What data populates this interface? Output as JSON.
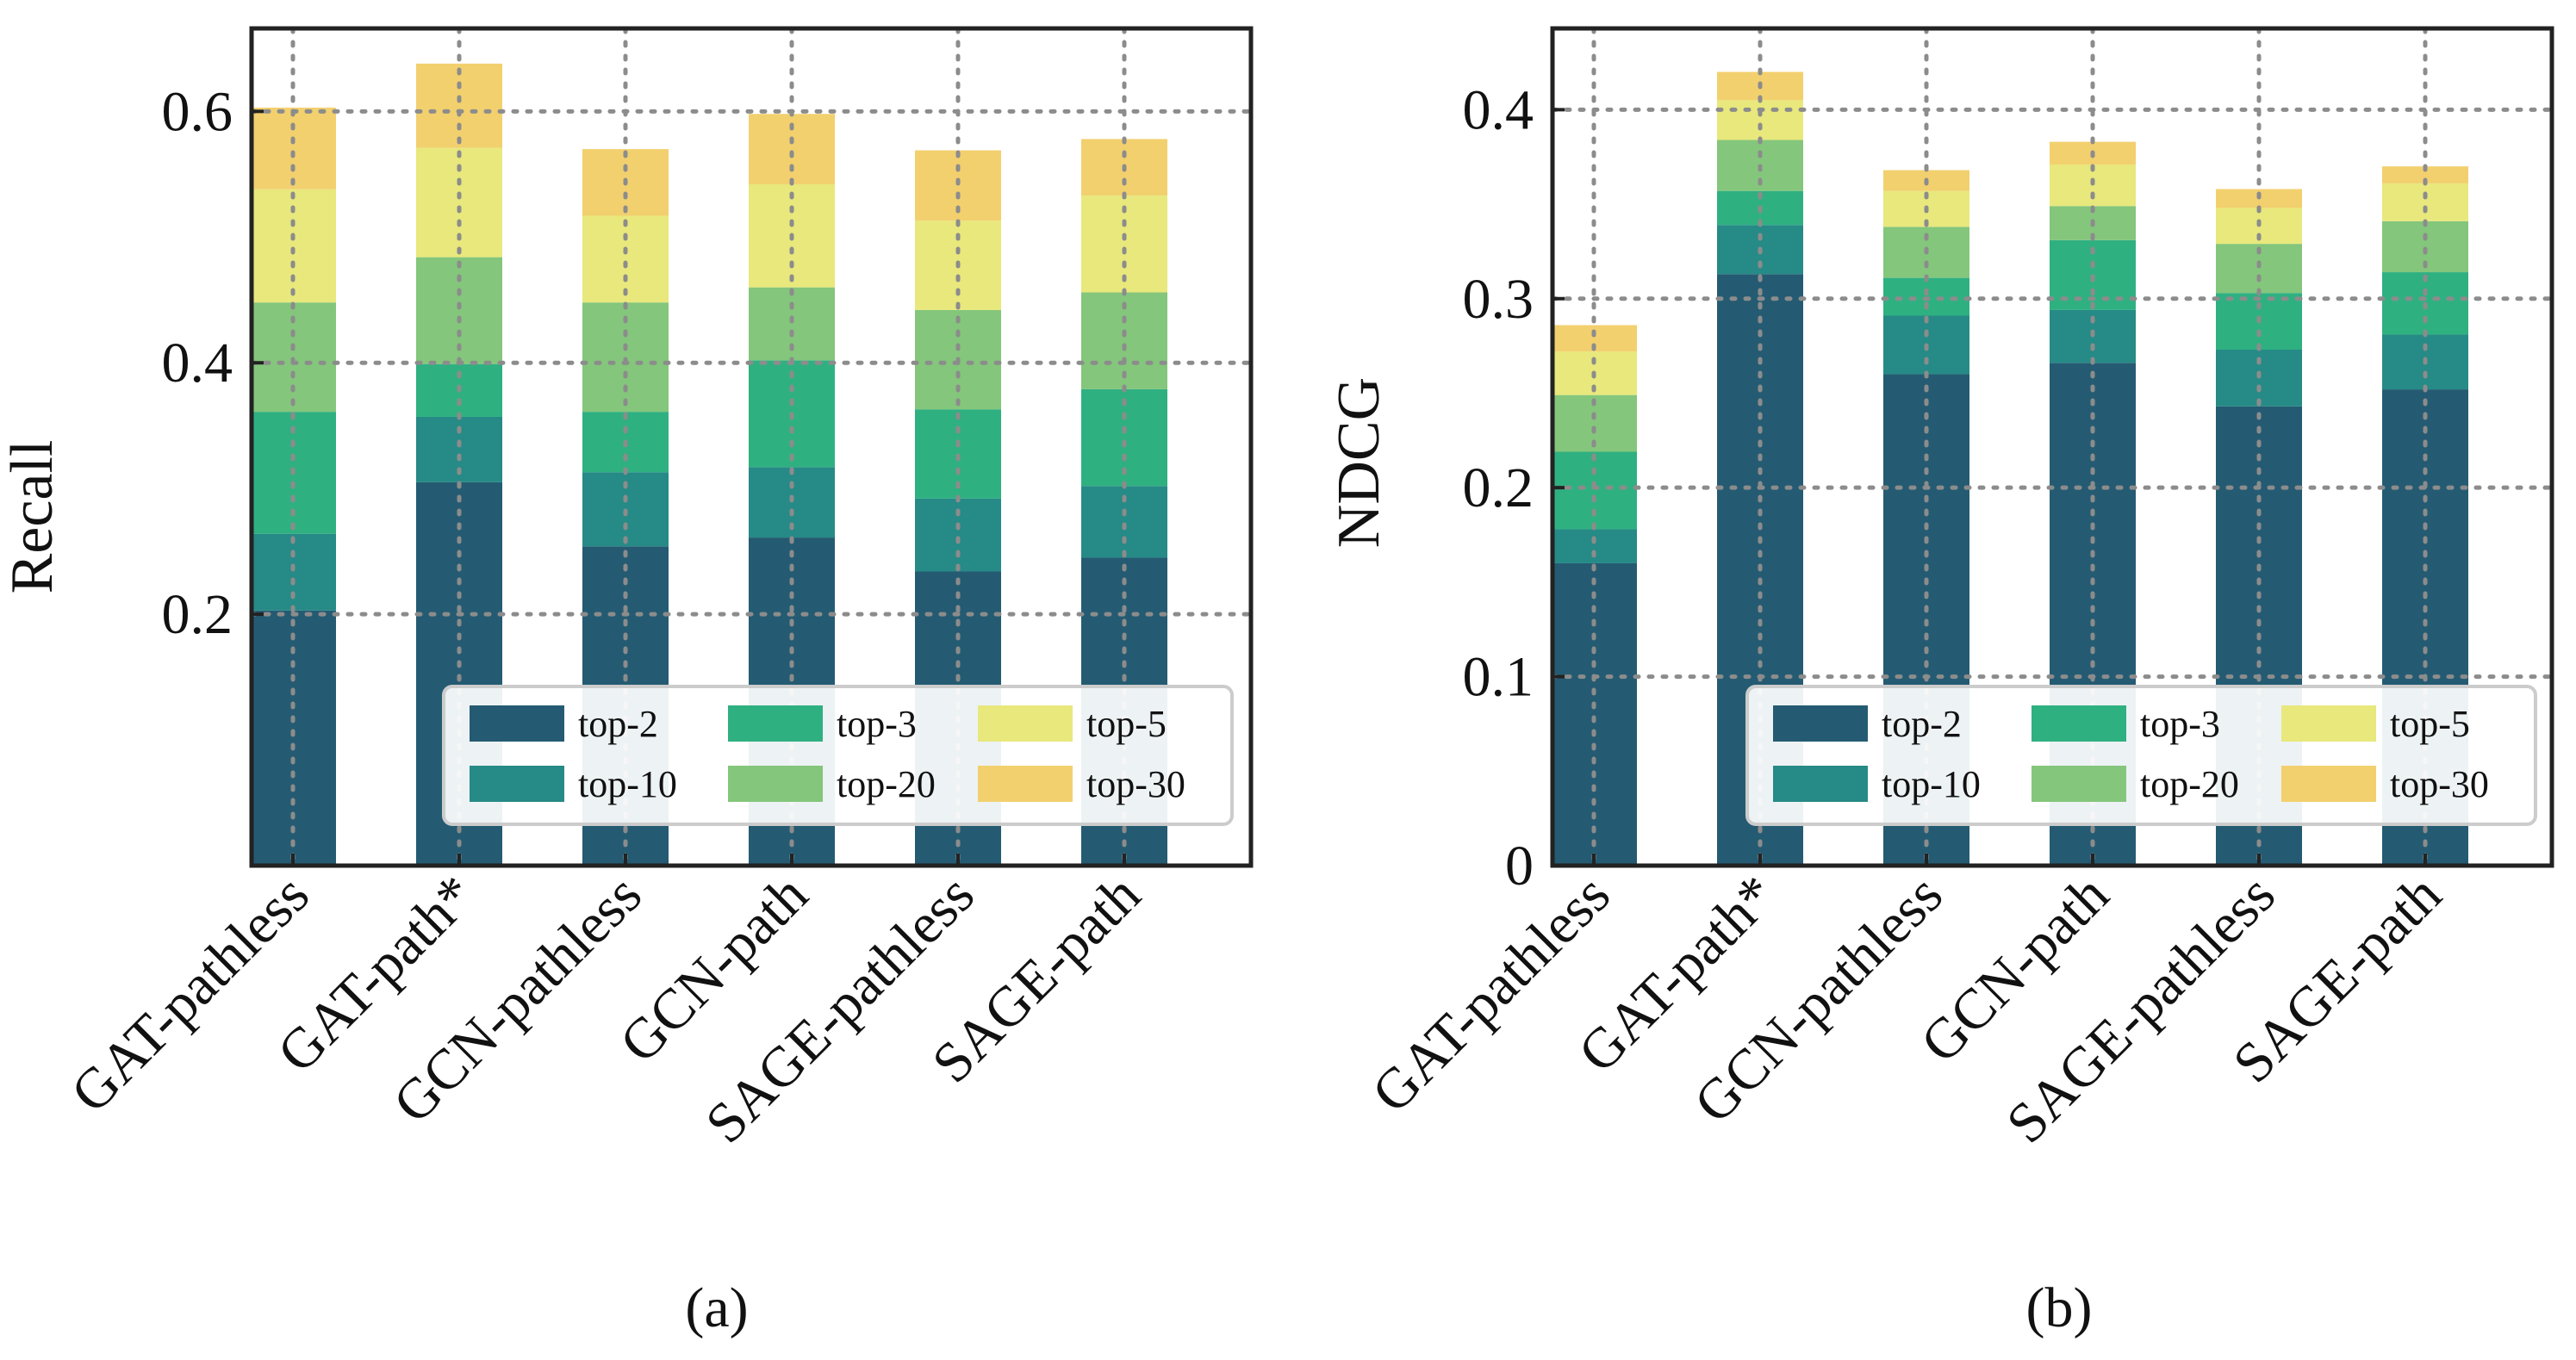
{
  "figure": {
    "stack_order": [
      "top-2",
      "top-10",
      "top-3",
      "top-20",
      "top-5",
      "top-30"
    ],
    "legend_rows": [
      [
        "top-2",
        "top-3",
        "top-5"
      ],
      [
        "top-10",
        "top-20",
        "top-30"
      ]
    ],
    "colors": {
      "top-2": "#245b72",
      "top-10": "#268a86",
      "top-3": "#2fb081",
      "top-20": "#84c67b",
      "top-5": "#e8e87c",
      "top-30": "#f2d06e"
    },
    "grid_color": "#8c8c8c",
    "axis_color": "#222222"
  },
  "chart_data": [
    {
      "type": "bar",
      "stacked": true,
      "caption": "(a)",
      "ylabel": "Recall",
      "xlabel": "",
      "ylim": [
        0,
        0.666
      ],
      "yticks": [
        0.2,
        0.4,
        0.6
      ],
      "ytick_labels": [
        "0.2",
        "0.4",
        "0.6"
      ],
      "grid": true,
      "legend_loc": "lower-right",
      "categories": [
        "GAT-pathless",
        "GAT-path*",
        "GCN-pathless",
        "GCN-path",
        "SAGE-pathless",
        "SAGE-path"
      ],
      "series": [
        {
          "name": "top-2",
          "values": [
            0.203,
            0.305,
            0.254,
            0.261,
            0.234,
            0.245
          ]
        },
        {
          "name": "top-10",
          "values": [
            0.061,
            0.052,
            0.059,
            0.056,
            0.058,
            0.057
          ]
        },
        {
          "name": "top-3",
          "values": [
            0.097,
            0.042,
            0.048,
            0.085,
            0.071,
            0.077
          ]
        },
        {
          "name": "top-20",
          "values": [
            0.087,
            0.085,
            0.087,
            0.058,
            0.079,
            0.077
          ]
        },
        {
          "name": "top-5",
          "values": [
            0.09,
            0.087,
            0.069,
            0.082,
            0.071,
            0.077
          ]
        },
        {
          "name": "top-30",
          "values": [
            0.065,
            0.067,
            0.053,
            0.056,
            0.056,
            0.045
          ]
        }
      ]
    },
    {
      "type": "bar",
      "stacked": true,
      "caption": "(b)",
      "ylabel": "NDCG",
      "xlabel": "",
      "ylim": [
        0,
        0.443
      ],
      "yticks": [
        0,
        0.1,
        0.2,
        0.3,
        0.4
      ],
      "ytick_labels": [
        "0",
        "0.1",
        "0.2",
        "0.3",
        "0.4"
      ],
      "grid": true,
      "legend_loc": "lower-right",
      "categories": [
        "GAT-pathless",
        "GAT-path*",
        "GCN-pathless",
        "GCN-path",
        "SAGE-pathless",
        "SAGE-path"
      ],
      "series": [
        {
          "name": "top-2",
          "values": [
            0.16,
            0.313,
            0.26,
            0.266,
            0.243,
            0.252
          ]
        },
        {
          "name": "top-10",
          "values": [
            0.018,
            0.026,
            0.031,
            0.028,
            0.03,
            0.029
          ]
        },
        {
          "name": "top-3",
          "values": [
            0.041,
            0.018,
            0.02,
            0.037,
            0.03,
            0.033
          ]
        },
        {
          "name": "top-20",
          "values": [
            0.03,
            0.027,
            0.027,
            0.018,
            0.026,
            0.027
          ]
        },
        {
          "name": "top-5",
          "values": [
            0.023,
            0.021,
            0.019,
            0.022,
            0.019,
            0.02
          ]
        },
        {
          "name": "top-30",
          "values": [
            0.014,
            0.015,
            0.011,
            0.012,
            0.01,
            0.009
          ]
        }
      ]
    }
  ]
}
